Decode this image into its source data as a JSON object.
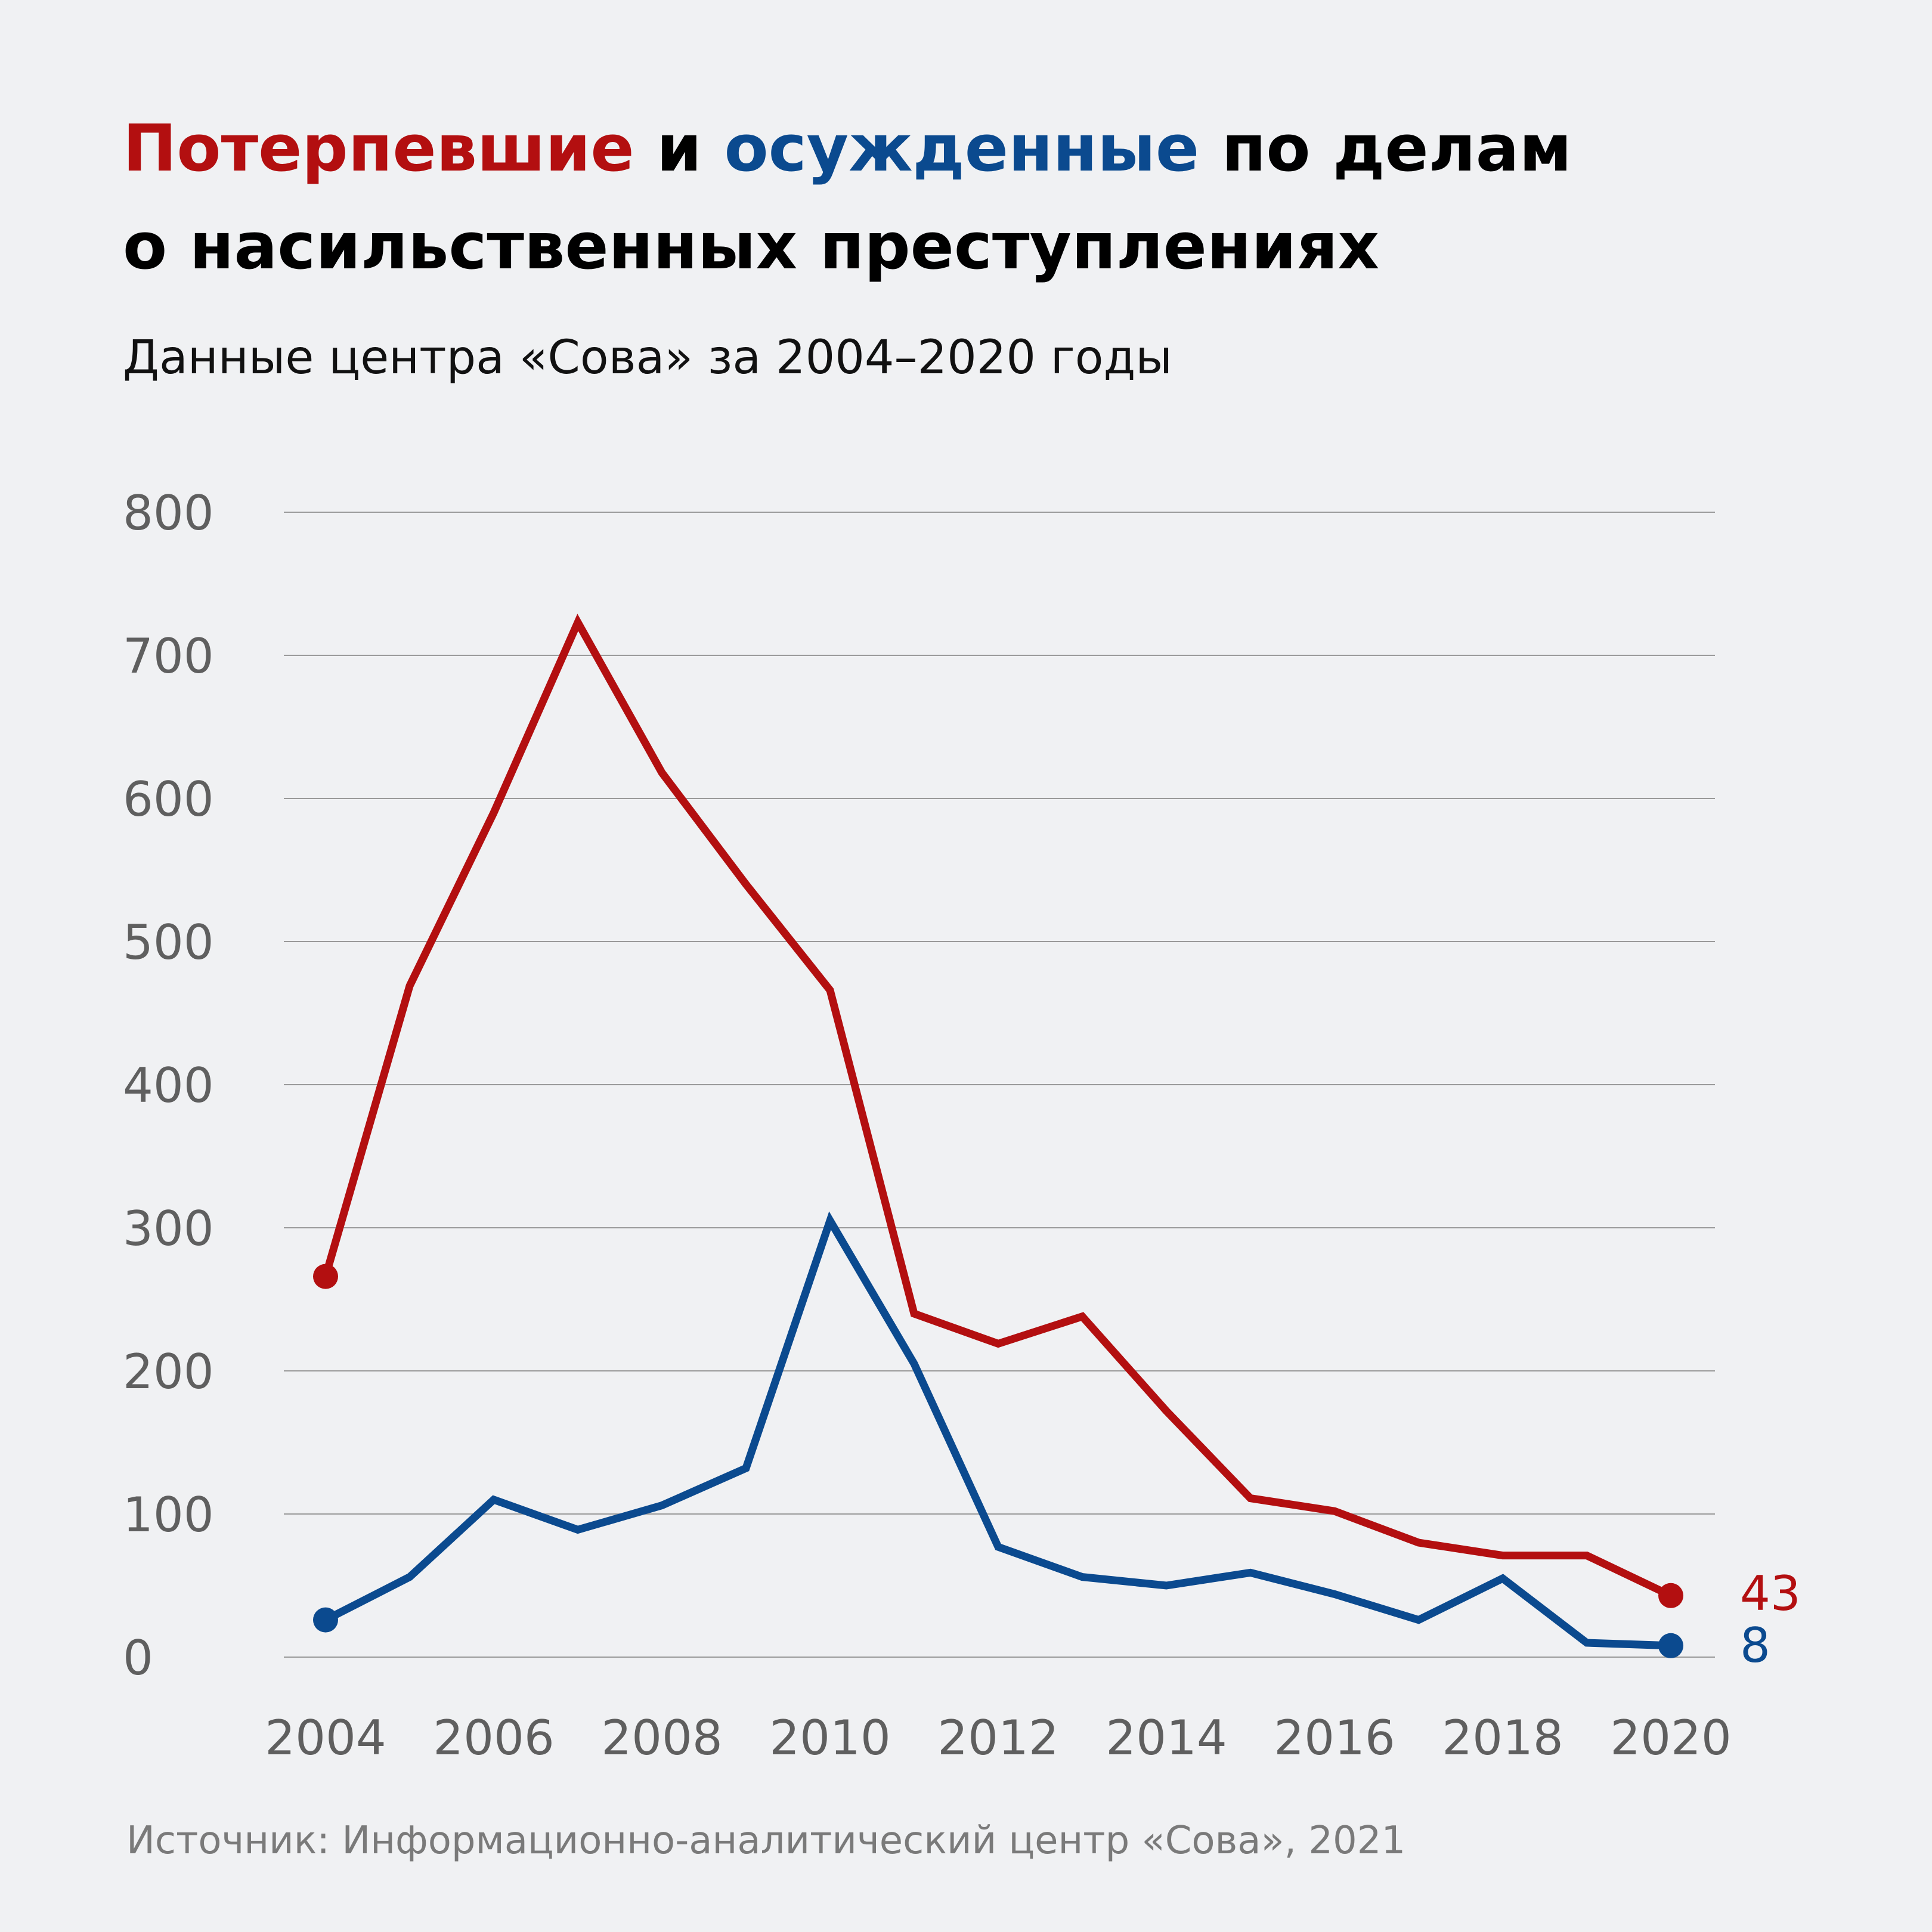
{
  "title": {
    "part1": "Потерпевшие",
    "part2": " и ",
    "part3": "осужденные",
    "part4": " по делам",
    "line2": "о насильственных преступлениях"
  },
  "subtitle": "Данные центра «Сова» за 2004–2020 годы",
  "source": "Источник: Информационно-аналитический центр «Сова», 2021",
  "colors": {
    "background": "#f0f1f3",
    "victims": "#b30f10",
    "convicted": "#0b4a8f",
    "grid": "#9a9a9a",
    "tick_text": "#5f5f5f"
  },
  "chart_data": {
    "type": "line",
    "title": "",
    "xlabel": "",
    "ylabel": "",
    "x": [
      2004,
      2005,
      2006,
      2007,
      2008,
      2009,
      2010,
      2011,
      2012,
      2013,
      2014,
      2015,
      2016,
      2017,
      2018,
      2019,
      2020
    ],
    "xticks": [
      "2004",
      "2006",
      "2008",
      "2010",
      "2012",
      "2014",
      "2016",
      "2018",
      "2020"
    ],
    "yticks": [
      "0",
      "100",
      "200",
      "300",
      "400",
      "500",
      "600",
      "700",
      "800"
    ],
    "ylim": [
      0,
      800
    ],
    "xlim": [
      2004,
      2020
    ],
    "grid": "horizontal",
    "legend": "none",
    "series": [
      {
        "name": "Потерпевшие",
        "color": "#b30f10",
        "values": [
          266,
          469,
          590,
          723,
          618,
          540,
          466,
          240,
          219,
          238,
          172,
          111,
          102,
          80,
          71,
          71,
          43
        ],
        "end_label": "43"
      },
      {
        "name": "осужденные",
        "color": "#0b4a8f",
        "values": [
          26,
          56,
          110,
          89,
          106,
          132,
          305,
          205,
          77,
          56,
          50,
          59,
          44,
          26,
          55,
          10,
          8
        ],
        "end_label": "8"
      }
    ]
  }
}
